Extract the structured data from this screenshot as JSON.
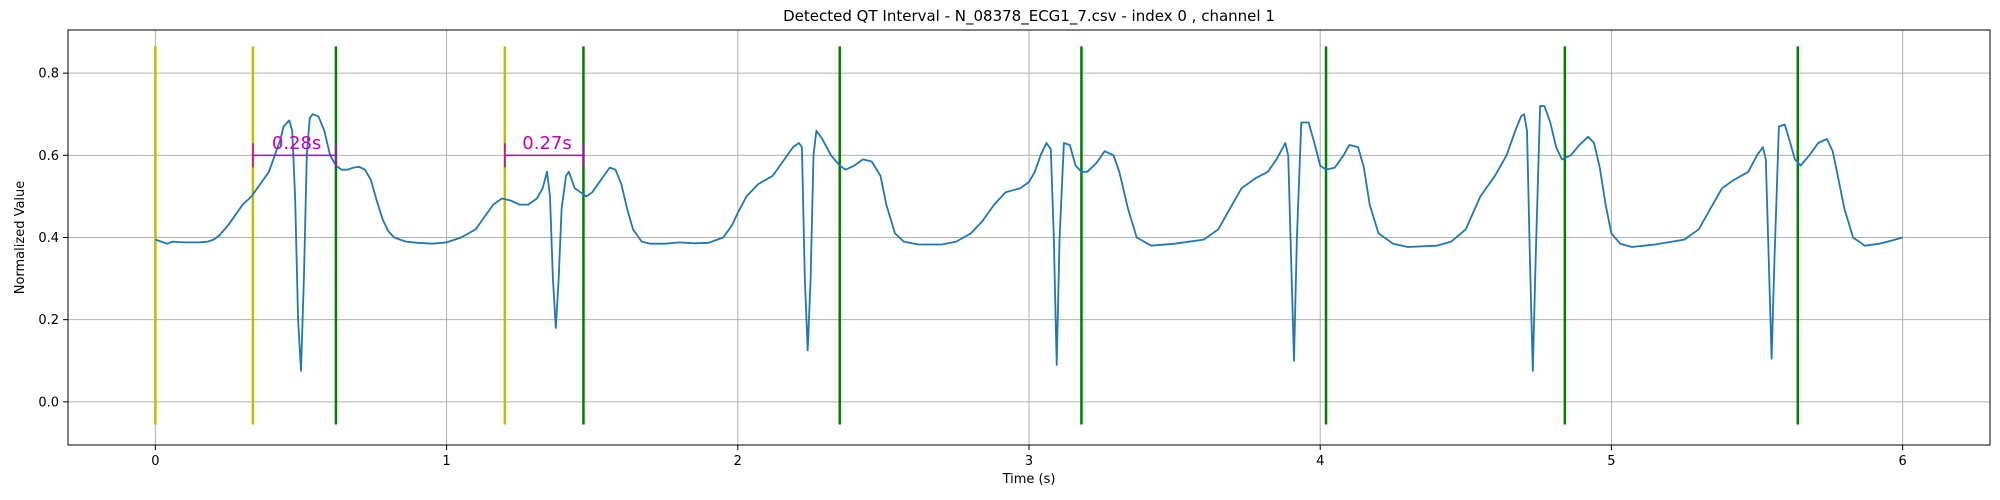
{
  "chart_data": {
    "type": "line",
    "title": "Detected QT Interval - N_08378_ECG1_7.csv - index 0 , channel 1",
    "xlabel": "Time (s)",
    "ylabel": "Normalized Value",
    "xlim": [
      -0.3,
      6.3
    ],
    "ylim": [
      -0.105,
      0.905
    ],
    "xticks": [
      0,
      1,
      2,
      3,
      4,
      5,
      6
    ],
    "xtick_labels": [
      "0",
      "1",
      "2",
      "3",
      "4",
      "5",
      "6"
    ],
    "yticks": [
      0.0,
      0.2,
      0.4,
      0.6,
      0.8
    ],
    "ytick_labels": [
      "0.0",
      "0.2",
      "0.4",
      "0.6",
      "0.8"
    ],
    "grid": true,
    "series": [
      {
        "color": "#1f77b4",
        "points": [
          [
            0.0,
            0.395
          ],
          [
            0.02,
            0.39
          ],
          [
            0.04,
            0.385
          ],
          [
            0.06,
            0.39
          ],
          [
            0.1,
            0.388
          ],
          [
            0.15,
            0.388
          ],
          [
            0.18,
            0.39
          ],
          [
            0.2,
            0.395
          ],
          [
            0.22,
            0.405
          ],
          [
            0.25,
            0.43
          ],
          [
            0.28,
            0.46
          ],
          [
            0.3,
            0.48
          ],
          [
            0.33,
            0.5
          ],
          [
            0.36,
            0.53
          ],
          [
            0.39,
            0.56
          ],
          [
            0.41,
            0.6
          ],
          [
            0.43,
            0.64
          ],
          [
            0.44,
            0.67
          ],
          [
            0.46,
            0.685
          ],
          [
            0.47,
            0.66
          ],
          [
            0.48,
            0.5
          ],
          [
            0.49,
            0.2
          ],
          [
            0.5,
            0.075
          ],
          [
            0.51,
            0.3
          ],
          [
            0.52,
            0.6
          ],
          [
            0.53,
            0.69
          ],
          [
            0.54,
            0.7
          ],
          [
            0.56,
            0.695
          ],
          [
            0.58,
            0.66
          ],
          [
            0.6,
            0.6
          ],
          [
            0.62,
            0.575
          ],
          [
            0.64,
            0.565
          ],
          [
            0.66,
            0.565
          ],
          [
            0.68,
            0.57
          ],
          [
            0.7,
            0.572
          ],
          [
            0.72,
            0.565
          ],
          [
            0.74,
            0.54
          ],
          [
            0.76,
            0.49
          ],
          [
            0.78,
            0.445
          ],
          [
            0.8,
            0.415
          ],
          [
            0.82,
            0.4
          ],
          [
            0.86,
            0.39
          ],
          [
            0.9,
            0.387
          ],
          [
            0.95,
            0.385
          ],
          [
            1.0,
            0.388
          ],
          [
            1.05,
            0.4
          ],
          [
            1.1,
            0.42
          ],
          [
            1.13,
            0.45
          ],
          [
            1.16,
            0.48
          ],
          [
            1.19,
            0.495
          ],
          [
            1.22,
            0.49
          ],
          [
            1.25,
            0.48
          ],
          [
            1.28,
            0.48
          ],
          [
            1.31,
            0.495
          ],
          [
            1.33,
            0.52
          ],
          [
            1.345,
            0.56
          ],
          [
            1.355,
            0.5
          ],
          [
            1.365,
            0.3
          ],
          [
            1.375,
            0.18
          ],
          [
            1.385,
            0.3
          ],
          [
            1.395,
            0.47
          ],
          [
            1.41,
            0.55
          ],
          [
            1.42,
            0.56
          ],
          [
            1.44,
            0.52
          ],
          [
            1.46,
            0.51
          ],
          [
            1.48,
            0.5
          ],
          [
            1.5,
            0.51
          ],
          [
            1.53,
            0.54
          ],
          [
            1.56,
            0.57
          ],
          [
            1.58,
            0.565
          ],
          [
            1.6,
            0.53
          ],
          [
            1.62,
            0.47
          ],
          [
            1.64,
            0.42
          ],
          [
            1.67,
            0.39
          ],
          [
            1.7,
            0.385
          ],
          [
            1.75,
            0.385
          ],
          [
            1.8,
            0.388
          ],
          [
            1.85,
            0.386
          ],
          [
            1.9,
            0.387
          ],
          [
            1.95,
            0.4
          ],
          [
            1.98,
            0.43
          ],
          [
            2.0,
            0.46
          ],
          [
            2.03,
            0.5
          ],
          [
            2.07,
            0.53
          ],
          [
            2.12,
            0.55
          ],
          [
            2.16,
            0.59
          ],
          [
            2.19,
            0.62
          ],
          [
            2.21,
            0.63
          ],
          [
            2.22,
            0.62
          ],
          [
            2.23,
            0.3
          ],
          [
            2.24,
            0.125
          ],
          [
            2.25,
            0.3
          ],
          [
            2.26,
            0.6
          ],
          [
            2.27,
            0.66
          ],
          [
            2.29,
            0.64
          ],
          [
            2.32,
            0.6
          ],
          [
            2.35,
            0.575
          ],
          [
            2.37,
            0.565
          ],
          [
            2.4,
            0.575
          ],
          [
            2.43,
            0.59
          ],
          [
            2.46,
            0.585
          ],
          [
            2.49,
            0.55
          ],
          [
            2.51,
            0.48
          ],
          [
            2.54,
            0.41
          ],
          [
            2.57,
            0.39
          ],
          [
            2.62,
            0.383
          ],
          [
            2.7,
            0.383
          ],
          [
            2.75,
            0.39
          ],
          [
            2.8,
            0.41
          ],
          [
            2.84,
            0.44
          ],
          [
            2.88,
            0.48
          ],
          [
            2.92,
            0.51
          ],
          [
            2.97,
            0.52
          ],
          [
            3.0,
            0.535
          ],
          [
            3.02,
            0.56
          ],
          [
            3.04,
            0.6
          ],
          [
            3.06,
            0.63
          ],
          [
            3.075,
            0.615
          ],
          [
            3.085,
            0.4
          ],
          [
            3.095,
            0.09
          ],
          [
            3.105,
            0.4
          ],
          [
            3.12,
            0.63
          ],
          [
            3.14,
            0.625
          ],
          [
            3.16,
            0.575
          ],
          [
            3.18,
            0.56
          ],
          [
            3.2,
            0.56
          ],
          [
            3.23,
            0.58
          ],
          [
            3.26,
            0.61
          ],
          [
            3.29,
            0.6
          ],
          [
            3.31,
            0.56
          ],
          [
            3.34,
            0.47
          ],
          [
            3.37,
            0.4
          ],
          [
            3.42,
            0.38
          ],
          [
            3.5,
            0.385
          ],
          [
            3.6,
            0.395
          ],
          [
            3.65,
            0.42
          ],
          [
            3.69,
            0.47
          ],
          [
            3.73,
            0.52
          ],
          [
            3.78,
            0.545
          ],
          [
            3.82,
            0.56
          ],
          [
            3.85,
            0.59
          ],
          [
            3.88,
            0.63
          ],
          [
            3.89,
            0.6
          ],
          [
            3.9,
            0.35
          ],
          [
            3.91,
            0.1
          ],
          [
            3.92,
            0.4
          ],
          [
            3.935,
            0.68
          ],
          [
            3.96,
            0.68
          ],
          [
            3.98,
            0.63
          ],
          [
            4.0,
            0.575
          ],
          [
            4.02,
            0.565
          ],
          [
            4.05,
            0.57
          ],
          [
            4.08,
            0.6
          ],
          [
            4.1,
            0.625
          ],
          [
            4.13,
            0.62
          ],
          [
            4.15,
            0.57
          ],
          [
            4.17,
            0.48
          ],
          [
            4.2,
            0.41
          ],
          [
            4.25,
            0.385
          ],
          [
            4.3,
            0.377
          ],
          [
            4.4,
            0.38
          ],
          [
            4.45,
            0.39
          ],
          [
            4.5,
            0.42
          ],
          [
            4.55,
            0.5
          ],
          [
            4.6,
            0.55
          ],
          [
            4.64,
            0.6
          ],
          [
            4.67,
            0.66
          ],
          [
            4.69,
            0.695
          ],
          [
            4.7,
            0.7
          ],
          [
            4.71,
            0.66
          ],
          [
            4.72,
            0.35
          ],
          [
            4.73,
            0.075
          ],
          [
            4.74,
            0.35
          ],
          [
            4.755,
            0.72
          ],
          [
            4.77,
            0.72
          ],
          [
            4.79,
            0.68
          ],
          [
            4.81,
            0.62
          ],
          [
            4.83,
            0.59
          ],
          [
            4.86,
            0.6
          ],
          [
            4.89,
            0.625
          ],
          [
            4.92,
            0.645
          ],
          [
            4.94,
            0.63
          ],
          [
            4.96,
            0.57
          ],
          [
            4.98,
            0.48
          ],
          [
            5.0,
            0.41
          ],
          [
            5.03,
            0.385
          ],
          [
            5.07,
            0.377
          ],
          [
            5.15,
            0.383
          ],
          [
            5.25,
            0.395
          ],
          [
            5.3,
            0.42
          ],
          [
            5.34,
            0.47
          ],
          [
            5.38,
            0.52
          ],
          [
            5.42,
            0.54
          ],
          [
            5.47,
            0.56
          ],
          [
            5.5,
            0.6
          ],
          [
            5.52,
            0.62
          ],
          [
            5.53,
            0.59
          ],
          [
            5.54,
            0.35
          ],
          [
            5.55,
            0.105
          ],
          [
            5.56,
            0.35
          ],
          [
            5.575,
            0.67
          ],
          [
            5.595,
            0.675
          ],
          [
            5.61,
            0.64
          ],
          [
            5.63,
            0.59
          ],
          [
            5.65,
            0.575
          ],
          [
            5.68,
            0.6
          ],
          [
            5.71,
            0.63
          ],
          [
            5.74,
            0.64
          ],
          [
            5.76,
            0.61
          ],
          [
            5.78,
            0.54
          ],
          [
            5.8,
            0.47
          ],
          [
            5.83,
            0.4
          ],
          [
            5.87,
            0.38
          ],
          [
            5.92,
            0.385
          ],
          [
            5.96,
            0.392
          ],
          [
            6.0,
            0.4
          ]
        ]
      }
    ],
    "vertical_lines": [
      {
        "x": 0.0,
        "color": "#bfbf00",
        "ymin": -0.055,
        "ymax": 0.865
      },
      {
        "x": 0.335,
        "color": "#bfbf00",
        "ymin": -0.055,
        "ymax": 0.865
      },
      {
        "x": 1.2,
        "color": "#bfbf00",
        "ymin": -0.055,
        "ymax": 0.865
      },
      {
        "x": 0.62,
        "color": "#008000",
        "ymin": -0.055,
        "ymax": 0.865
      },
      {
        "x": 1.47,
        "color": "#008000",
        "ymin": -0.055,
        "ymax": 0.865
      },
      {
        "x": 2.35,
        "color": "#008000",
        "ymin": -0.055,
        "ymax": 0.865
      },
      {
        "x": 3.18,
        "color": "#008000",
        "ymin": -0.055,
        "ymax": 0.865
      },
      {
        "x": 4.02,
        "color": "#008000",
        "ymin": -0.055,
        "ymax": 0.865
      },
      {
        "x": 4.84,
        "color": "#008000",
        "ymin": -0.055,
        "ymax": 0.865
      },
      {
        "x": 5.64,
        "color": "#008000",
        "ymin": -0.055,
        "ymax": 0.865
      }
    ],
    "annotations": [
      {
        "x_start": 0.335,
        "x_end": 0.62,
        "y": 0.6,
        "label": "0.28s",
        "label_x": 0.4,
        "label_y": 0.615,
        "color": "#bf00bf"
      },
      {
        "x_start": 1.2,
        "x_end": 1.47,
        "y": 0.6,
        "label": "0.27s",
        "label_x": 1.26,
        "label_y": 0.615,
        "color": "#bf00bf"
      }
    ],
    "colors": {
      "grid": "#b0b0b0",
      "axis": "#000000"
    }
  }
}
